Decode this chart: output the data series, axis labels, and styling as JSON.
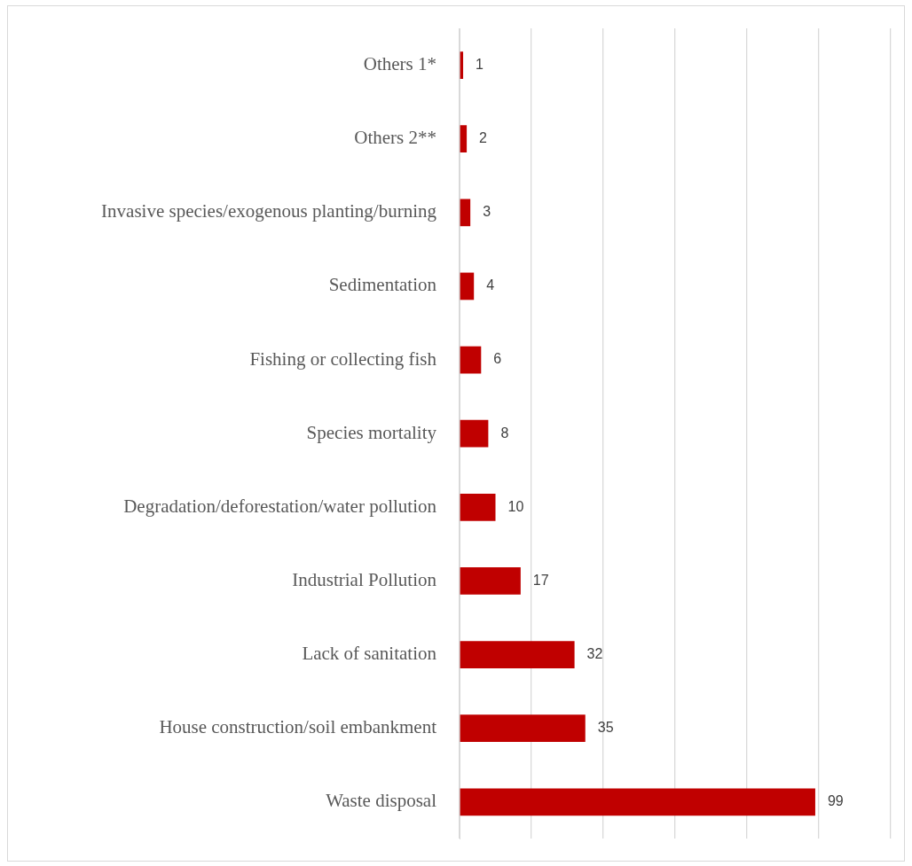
{
  "chart_data": {
    "type": "bar",
    "orientation": "horizontal",
    "categories": [
      "Others 1*",
      "Others 2**",
      "Invasive species/exogenous planting/burning",
      "Sedimentation",
      "Fishing or collecting fish",
      "Species mortality",
      "Degradation/deforestation/water pollution",
      "Industrial Pollution",
      "Lack of sanitation",
      "House construction/soil embankment",
      "Waste disposal"
    ],
    "values": [
      1,
      2,
      3,
      4,
      6,
      8,
      10,
      17,
      32,
      35,
      99
    ],
    "color": "#c00000",
    "xlim": [
      0,
      120
    ],
    "xticks": [
      0,
      20,
      40,
      60,
      80,
      100,
      120
    ],
    "tick_labels": "y",
    "grid": "x",
    "data_labels": true,
    "legend": false
  }
}
